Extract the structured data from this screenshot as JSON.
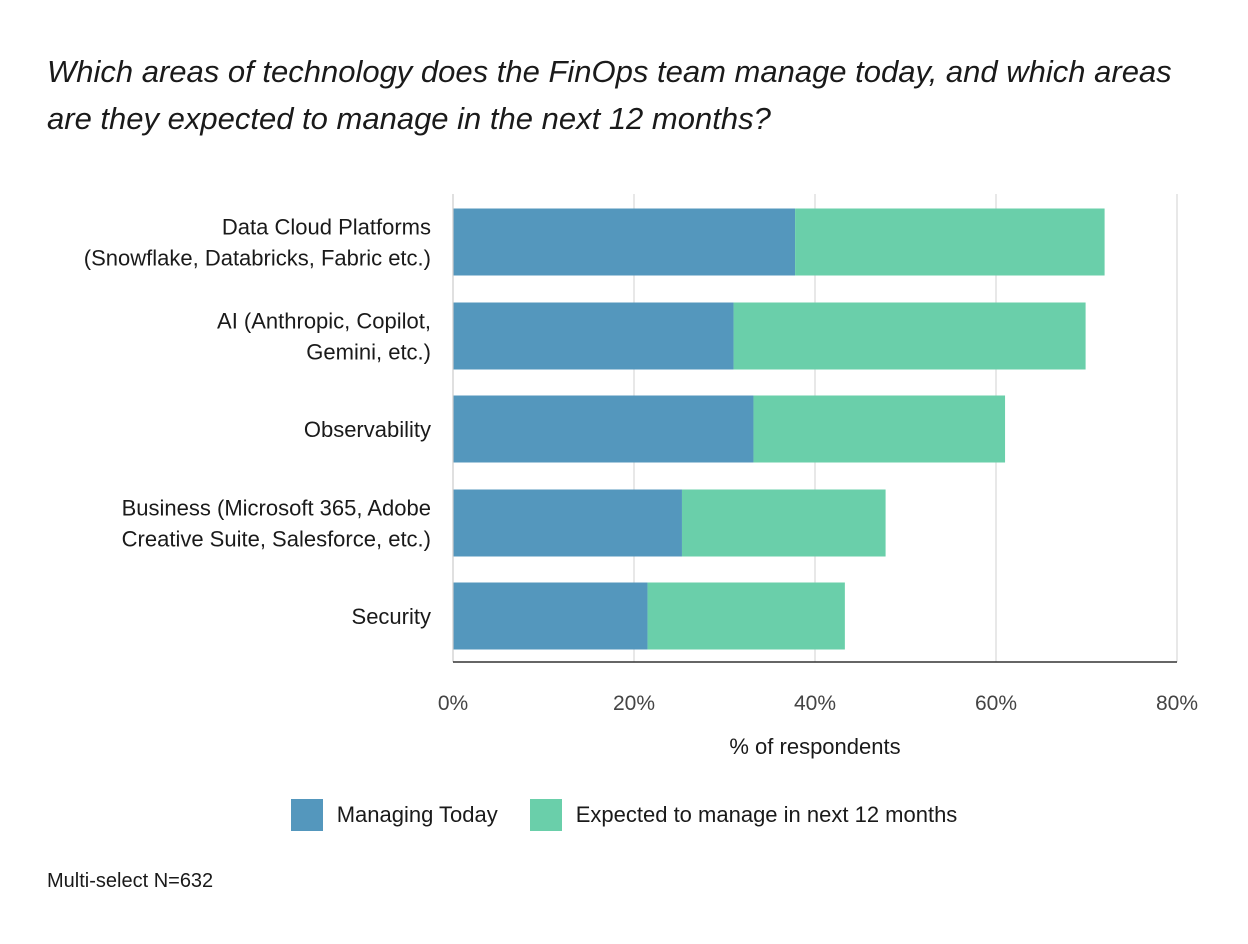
{
  "title": "Which areas of technology does the FinOps team manage today, and which areas are they expected to manage in the next 12 months?",
  "footnote": "Multi-select N=632",
  "colors": {
    "managing_today": "#5497bd",
    "expected": "#6acfaa",
    "grid": "#d9d9d9",
    "axis": "#333333"
  },
  "chart_data": {
    "type": "bar",
    "orientation": "horizontal",
    "stacked": true,
    "categories": [
      [
        "Data Cloud Platforms",
        "(Snowflake, Databricks, Fabric etc.)"
      ],
      [
        "AI (Anthropic, Copilot,",
        "Gemini, etc.)"
      ],
      [
        "Observability"
      ],
      [
        "Business (Microsoft 365, Adobe",
        "Creative Suite, Salesforce, etc.)"
      ],
      [
        "Security"
      ]
    ],
    "series": [
      {
        "name": "Managing Today",
        "values": [
          37.8,
          31.0,
          33.2,
          25.3,
          21.5
        ]
      },
      {
        "name": "Expected to manage in next 12 months",
        "values": [
          34.2,
          38.9,
          27.8,
          22.5,
          21.8
        ]
      }
    ],
    "xlabel": "% of respondents",
    "xlim": [
      0,
      80
    ],
    "xticks": [
      0,
      20,
      40,
      60,
      80
    ],
    "tick_suffix": "%",
    "grid": true,
    "legend_position": "bottom"
  }
}
